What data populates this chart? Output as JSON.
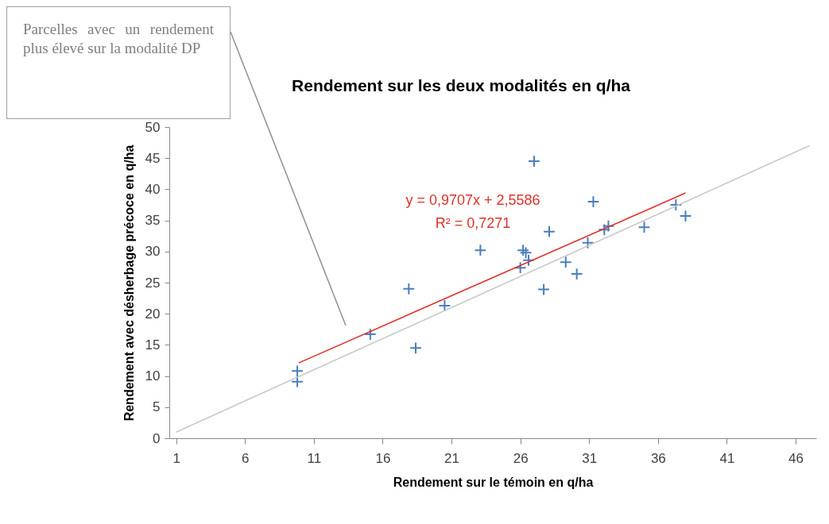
{
  "chart_data": {
    "type": "scatter",
    "title": "Rendement sur les deux modalités en q/ha",
    "xlabel": "Rendement sur le témoin en q/ha",
    "ylabel": "Rendement avec désherbage précoce en q/ha",
    "xlim": [
      0.5,
      47.5
    ],
    "xticks": [
      1,
      6,
      11,
      16,
      21,
      26,
      31,
      36,
      41,
      46
    ],
    "ylim": [
      0,
      50
    ],
    "yticks": [
      0,
      5,
      10,
      15,
      20,
      25,
      30,
      35,
      40,
      45,
      50
    ],
    "grid": false,
    "series": [
      {
        "marker": "cross",
        "color": "#4a7ebb",
        "x": [
          9.8,
          9.8,
          15.1,
          17.9,
          18.4,
          20.5,
          23.1,
          26.0,
          26.2,
          26.4,
          26.6,
          27.0,
          27.7,
          28.1,
          29.3,
          30.1,
          30.9,
          31.3,
          32.1,
          32.4,
          35.0,
          37.3,
          38.0
        ],
        "values": [
          10.8,
          9.1,
          16.7,
          24.0,
          14.5,
          21.3,
          30.2,
          27.4,
          30.2,
          29.8,
          28.6,
          44.5,
          23.9,
          33.2,
          28.3,
          26.4,
          31.4,
          38.0,
          33.5,
          34.1,
          33.9,
          37.5,
          35.7
        ]
      },
      {
        "type": "line",
        "color": "#e0302a",
        "x": [
          9.9,
          38.0
        ],
        "values": [
          12.1,
          39.4
        ]
      },
      {
        "type": "line",
        "color": "#c8c8c8",
        "x": [
          1,
          47
        ],
        "values": [
          1,
          47
        ]
      }
    ],
    "annotations": [
      "y = 0,9707x + 2,5586",
      "R² = 0,7271",
      "Parcelles avec un rendement plus élevé sur la modalité DP"
    ]
  }
}
